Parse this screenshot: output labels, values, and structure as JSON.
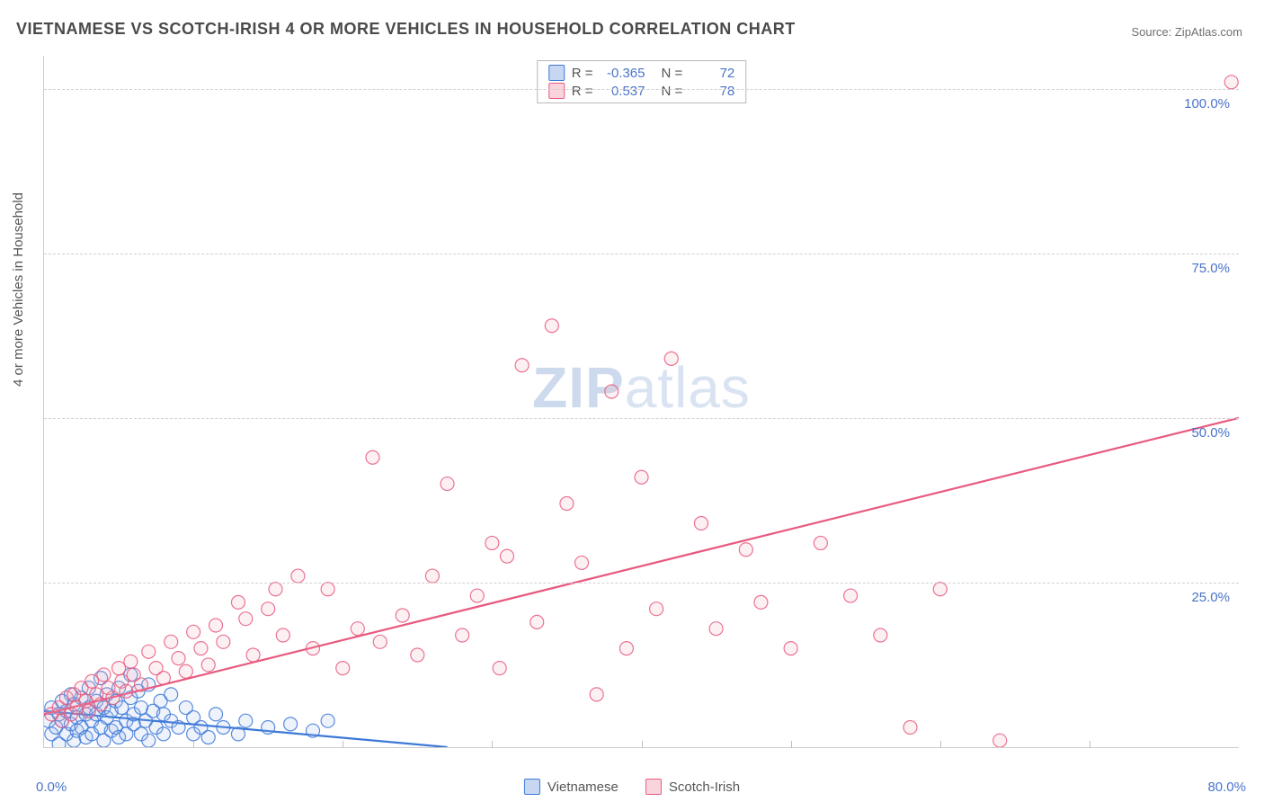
{
  "title": "VIETNAMESE VS SCOTCH-IRISH 4 OR MORE VEHICLES IN HOUSEHOLD CORRELATION CHART",
  "source_label": "Source: ",
  "source_site": "ZipAtlas.com",
  "ylabel": "4 or more Vehicles in Household",
  "watermark_bold": "ZIP",
  "watermark_rest": "atlas",
  "chart": {
    "type": "scatter",
    "xlim": [
      0,
      80
    ],
    "ylim": [
      0,
      105
    ],
    "xtick_step": 10,
    "ytick_positions": [
      25,
      50,
      75,
      100
    ],
    "ytick_labels": [
      "25.0%",
      "50.0%",
      "75.0%",
      "100.0%"
    ],
    "x_min_label": "0.0%",
    "x_max_label": "80.0%",
    "background_color": "#ffffff",
    "grid_color": "#d0d0d0",
    "axis_color": "#cccccc",
    "marker_radius": 7.5,
    "marker_stroke_width": 1.2,
    "fill_opacity": 0.18,
    "series": [
      {
        "name": "Vietnamese",
        "R_label": "R = ",
        "R_value": "-0.365",
        "N_label": "N = ",
        "N_value": "72",
        "stroke": "#3c78d8",
        "fill": "#9db8e8",
        "trend": {
          "x1": 0,
          "y1": 5.5,
          "x2": 27,
          "y2": 0
        },
        "points": [
          [
            0.3,
            4
          ],
          [
            0.5,
            2
          ],
          [
            0.5,
            6
          ],
          [
            0.8,
            3
          ],
          [
            1,
            5
          ],
          [
            1,
            0.5
          ],
          [
            1.2,
            4
          ],
          [
            1.2,
            7
          ],
          [
            1.5,
            2
          ],
          [
            1.5,
            5.5
          ],
          [
            1.8,
            3.5
          ],
          [
            1.8,
            8
          ],
          [
            2,
            1
          ],
          [
            2,
            6.5
          ],
          [
            2.2,
            4.5
          ],
          [
            2.2,
            2.5
          ],
          [
            2.5,
            7.5
          ],
          [
            2.5,
            3
          ],
          [
            2.8,
            5
          ],
          [
            2.8,
            1.5
          ],
          [
            3,
            6
          ],
          [
            3,
            9
          ],
          [
            3.2,
            4
          ],
          [
            3.2,
            2
          ],
          [
            3.5,
            7
          ],
          [
            3.5,
            5
          ],
          [
            3.8,
            3
          ],
          [
            3.8,
            10.5
          ],
          [
            4,
            6
          ],
          [
            4,
            1
          ],
          [
            4.2,
            4.5
          ],
          [
            4.2,
            8
          ],
          [
            4.5,
            2.5
          ],
          [
            4.5,
            5.5
          ],
          [
            4.8,
            7
          ],
          [
            4.8,
            3
          ],
          [
            5,
            9
          ],
          [
            5,
            1.5
          ],
          [
            5.2,
            6
          ],
          [
            5.5,
            4
          ],
          [
            5.5,
            2
          ],
          [
            5.8,
            7.5
          ],
          [
            5.8,
            11
          ],
          [
            6,
            3.5
          ],
          [
            6,
            5
          ],
          [
            6.3,
            8.5
          ],
          [
            6.5,
            2
          ],
          [
            6.5,
            6
          ],
          [
            6.8,
            4
          ],
          [
            7,
            9.5
          ],
          [
            7,
            1
          ],
          [
            7.3,
            5.5
          ],
          [
            7.5,
            3
          ],
          [
            7.8,
            7
          ],
          [
            8,
            2
          ],
          [
            8,
            5
          ],
          [
            8.5,
            4
          ],
          [
            8.5,
            8
          ],
          [
            9,
            3
          ],
          [
            9.5,
            6
          ],
          [
            10,
            2
          ],
          [
            10,
            4.5
          ],
          [
            10.5,
            3
          ],
          [
            11,
            1.5
          ],
          [
            11.5,
            5
          ],
          [
            12,
            3
          ],
          [
            13,
            2
          ],
          [
            13.5,
            4
          ],
          [
            15,
            3
          ],
          [
            16.5,
            3.5
          ],
          [
            18,
            2.5
          ],
          [
            19,
            4
          ]
        ]
      },
      {
        "name": "Scotch-Irish",
        "R_label": "R = ",
        "R_value": "0.537",
        "N_label": "N = ",
        "N_value": "78",
        "stroke": "#e85a7f",
        "fill": "#f5aabb",
        "trend": {
          "x1": 0,
          "y1": 5,
          "x2": 80,
          "y2": 50
        },
        "points": [
          [
            0.5,
            5
          ],
          [
            1,
            6
          ],
          [
            1.2,
            4
          ],
          [
            1.5,
            7.5
          ],
          [
            1.8,
            5
          ],
          [
            2,
            8
          ],
          [
            2.2,
            6
          ],
          [
            2.5,
            9
          ],
          [
            2.8,
            7
          ],
          [
            3,
            5.5
          ],
          [
            3.2,
            10
          ],
          [
            3.5,
            8
          ],
          [
            3.8,
            6.5
          ],
          [
            4,
            11
          ],
          [
            4.3,
            9
          ],
          [
            4.6,
            7.5
          ],
          [
            5,
            12
          ],
          [
            5.2,
            10
          ],
          [
            5.5,
            8.5
          ],
          [
            5.8,
            13
          ],
          [
            6,
            11
          ],
          [
            6.5,
            9.5
          ],
          [
            7,
            14.5
          ],
          [
            7.5,
            12
          ],
          [
            8,
            10.5
          ],
          [
            8.5,
            16
          ],
          [
            9,
            13.5
          ],
          [
            9.5,
            11.5
          ],
          [
            10,
            17.5
          ],
          [
            10.5,
            15
          ],
          [
            11,
            12.5
          ],
          [
            11.5,
            18.5
          ],
          [
            12,
            16
          ],
          [
            13,
            22
          ],
          [
            13.5,
            19.5
          ],
          [
            14,
            14
          ],
          [
            15,
            21
          ],
          [
            15.5,
            24
          ],
          [
            16,
            17
          ],
          [
            17,
            26
          ],
          [
            18,
            15
          ],
          [
            19,
            24
          ],
          [
            20,
            12
          ],
          [
            21,
            18
          ],
          [
            22,
            44
          ],
          [
            22.5,
            16
          ],
          [
            24,
            20
          ],
          [
            25,
            14
          ],
          [
            26,
            26
          ],
          [
            27,
            40
          ],
          [
            28,
            17
          ],
          [
            29,
            23
          ],
          [
            30,
            31
          ],
          [
            30.5,
            12
          ],
          [
            31,
            29
          ],
          [
            32,
            58
          ],
          [
            33,
            19
          ],
          [
            34,
            64
          ],
          [
            35,
            37
          ],
          [
            36,
            28
          ],
          [
            37,
            8
          ],
          [
            38,
            54
          ],
          [
            39,
            15
          ],
          [
            40,
            41
          ],
          [
            41,
            21
          ],
          [
            42,
            59
          ],
          [
            44,
            34
          ],
          [
            45,
            18
          ],
          [
            47,
            30
          ],
          [
            48,
            22
          ],
          [
            50,
            15
          ],
          [
            52,
            31
          ],
          [
            54,
            23
          ],
          [
            56,
            17
          ],
          [
            58,
            3
          ],
          [
            60,
            24
          ],
          [
            64,
            1
          ],
          [
            79.5,
            101
          ]
        ]
      }
    ]
  },
  "legend_bottom": [
    {
      "label": "Vietnamese",
      "stroke": "#3c78d8",
      "fill": "#9db8e8"
    },
    {
      "label": "Scotch-Irish",
      "stroke": "#e85a7f",
      "fill": "#f5aabb"
    }
  ],
  "colors": {
    "title": "#4a4a4a",
    "axis_text": "#4a74c9",
    "label_text": "#555555"
  }
}
